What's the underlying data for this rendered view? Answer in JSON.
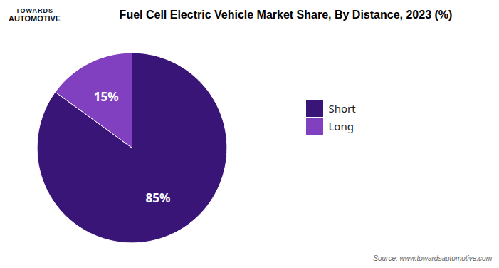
{
  "chart_data": {
    "type": "pie",
    "title": "Fuel Cell Electric Vehicle Market Share, By Distance, 2023 (%)",
    "categories": [
      "Short",
      "Long"
    ],
    "values": [
      85,
      15
    ],
    "value_labels": [
      "85%",
      "15%"
    ],
    "colors": [
      "#3a1578",
      "#8040c0"
    ],
    "data_labels": true,
    "legend": "right",
    "annotations": [
      "TOWARDS",
      "AUTOMOTIVE",
      "Source: www.towardsautomotive.com"
    ]
  }
}
